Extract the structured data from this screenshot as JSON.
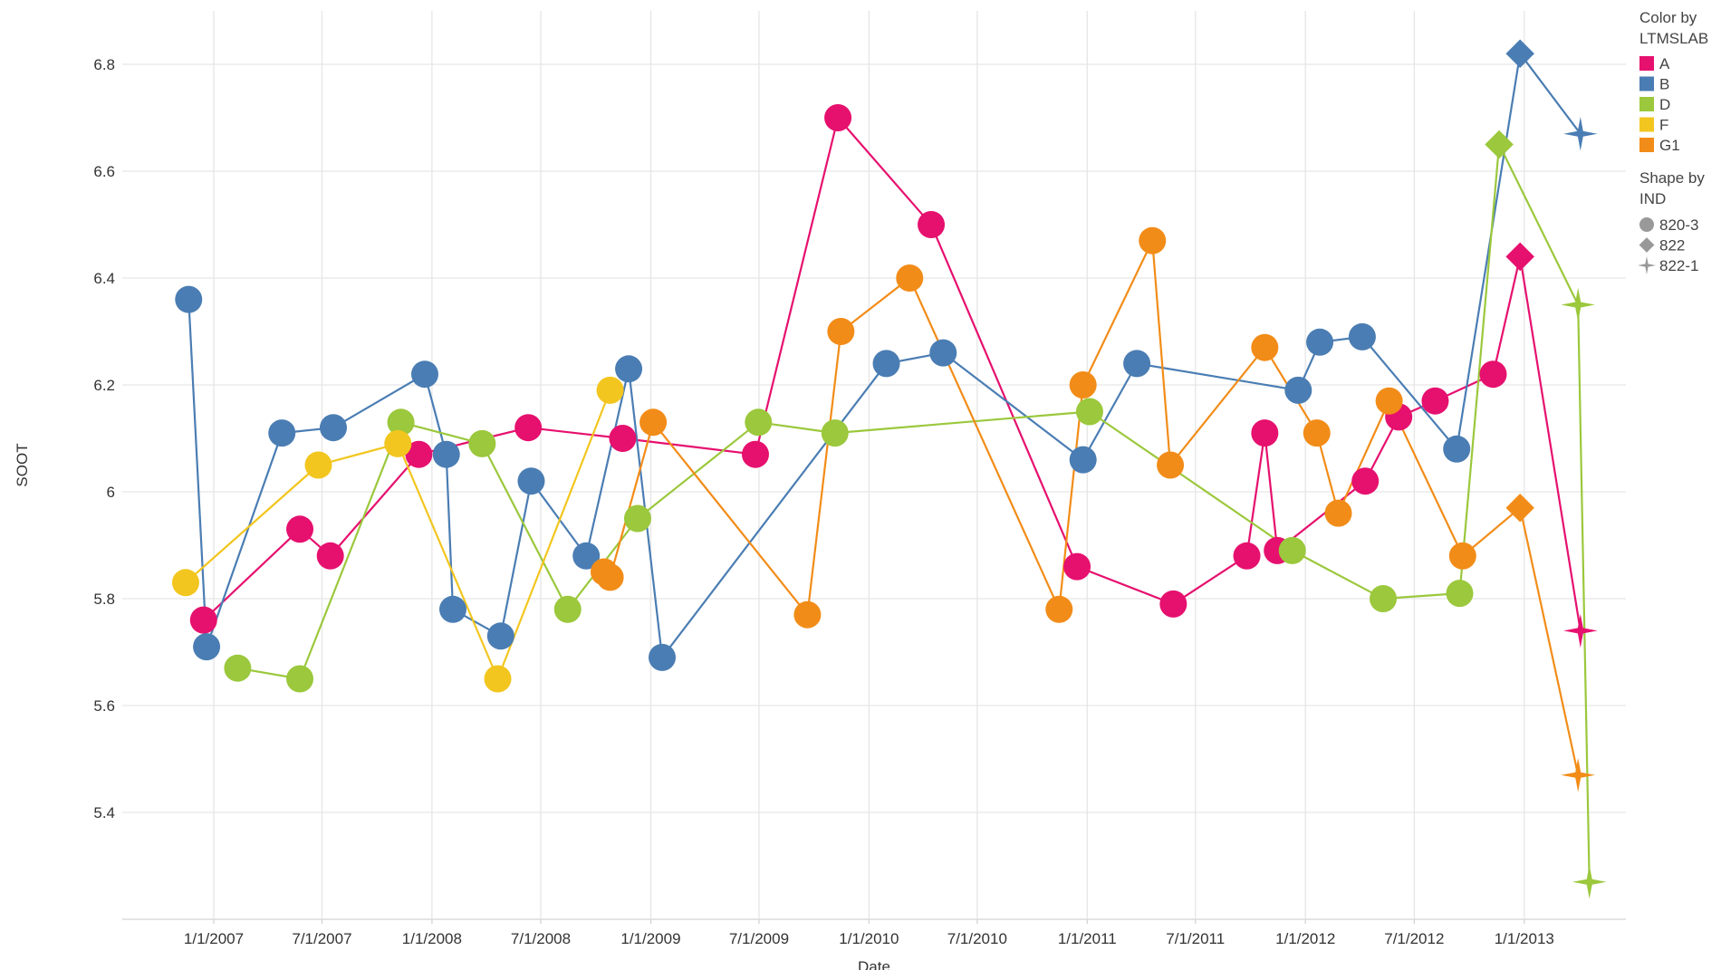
{
  "chart_data": {
    "type": "line",
    "xlabel": "Date",
    "ylabel": "SOOT",
    "x_ticks": [
      "1/1/2007",
      "7/1/2007",
      "1/1/2008",
      "7/1/2008",
      "1/1/2009",
      "7/1/2009",
      "1/1/2010",
      "7/1/2010",
      "1/1/2011",
      "7/1/2011",
      "1/1/2012",
      "7/1/2012",
      "1/1/2013"
    ],
    "y_ticks": [
      "5.4",
      "5.6",
      "5.8",
      "6",
      "6.2",
      "6.4",
      "6.6",
      "6.8"
    ],
    "xlim": [
      "2006-08-01",
      "2013-06-20"
    ],
    "ylim": [
      5.2,
      6.9
    ],
    "grid": true,
    "legend_position": "right",
    "legend": {
      "color_title_1": "Color by",
      "color_title_2": "LTMSLAB",
      "shape_title_1": "Shape by",
      "shape_title_2": "IND",
      "shapes": [
        {
          "name": "820-3",
          "shape": "circle"
        },
        {
          "name": "822",
          "shape": "diamond"
        },
        {
          "name": "822-1",
          "shape": "star"
        }
      ]
    },
    "series": [
      {
        "name": "A",
        "color": "#e6106e",
        "points": [
          {
            "x": "2006-12-15",
            "y": 5.76,
            "shape": "circle"
          },
          {
            "x": "2007-05-25",
            "y": 5.93,
            "shape": "circle"
          },
          {
            "x": "2007-07-15",
            "y": 5.88,
            "shape": "circle"
          },
          {
            "x": "2007-12-10",
            "y": 6.07,
            "shape": "circle"
          },
          {
            "x": "2008-06-10",
            "y": 6.12,
            "shape": "circle"
          },
          {
            "x": "2008-11-15",
            "y": 6.1,
            "shape": "circle"
          },
          {
            "x": "2009-06-25",
            "y": 6.07,
            "shape": "circle"
          },
          {
            "x": "2009-11-10",
            "y": 6.7,
            "shape": "circle"
          },
          {
            "x": "2010-04-15",
            "y": 6.5,
            "shape": "circle"
          },
          {
            "x": "2010-12-15",
            "y": 5.86,
            "shape": "circle"
          },
          {
            "x": "2011-05-25",
            "y": 5.79,
            "shape": "circle"
          },
          {
            "x": "2011-09-25",
            "y": 5.88,
            "shape": "circle"
          },
          {
            "x": "2011-10-25",
            "y": 6.11,
            "shape": "circle"
          },
          {
            "x": "2011-11-15",
            "y": 5.89,
            "shape": "circle"
          },
          {
            "x": "2012-04-10",
            "y": 6.02,
            "shape": "circle"
          },
          {
            "x": "2012-06-05",
            "y": 6.14,
            "shape": "circle"
          },
          {
            "x": "2012-08-05",
            "y": 6.17,
            "shape": "circle"
          },
          {
            "x": "2012-11-10",
            "y": 6.22,
            "shape": "circle"
          },
          {
            "x": "2012-12-25",
            "y": 6.44,
            "shape": "diamond"
          },
          {
            "x": "2013-04-05",
            "y": 5.74,
            "shape": "star"
          }
        ]
      },
      {
        "name": "B",
        "color": "#4a7db3",
        "points": [
          {
            "x": "2006-11-20",
            "y": 6.36,
            "shape": "circle"
          },
          {
            "x": "2006-12-20",
            "y": 5.71,
            "shape": "circle"
          },
          {
            "x": "2007-04-25",
            "y": 6.11,
            "shape": "circle"
          },
          {
            "x": "2007-07-20",
            "y": 6.12,
            "shape": "circle"
          },
          {
            "x": "2007-12-20",
            "y": 6.22,
            "shape": "circle"
          },
          {
            "x": "2008-01-25",
            "y": 6.07,
            "shape": "circle"
          },
          {
            "x": "2008-02-05",
            "y": 5.78,
            "shape": "circle"
          },
          {
            "x": "2008-04-25",
            "y": 5.73,
            "shape": "circle"
          },
          {
            "x": "2008-06-15",
            "y": 6.02,
            "shape": "circle"
          },
          {
            "x": "2008-09-15",
            "y": 5.88,
            "shape": "circle"
          },
          {
            "x": "2008-11-25",
            "y": 6.23,
            "shape": "circle"
          },
          {
            "x": "2009-01-20",
            "y": 5.69,
            "shape": "circle"
          },
          {
            "x": "2010-01-30",
            "y": 6.24,
            "shape": "circle"
          },
          {
            "x": "2010-05-05",
            "y": 6.26,
            "shape": "circle"
          },
          {
            "x": "2010-12-25",
            "y": 6.06,
            "shape": "circle"
          },
          {
            "x": "2011-03-25",
            "y": 6.24,
            "shape": "circle"
          },
          {
            "x": "2011-12-20",
            "y": 6.19,
            "shape": "circle"
          },
          {
            "x": "2012-01-25",
            "y": 6.28,
            "shape": "circle"
          },
          {
            "x": "2012-04-05",
            "y": 6.29,
            "shape": "circle"
          },
          {
            "x": "2012-09-10",
            "y": 6.08,
            "shape": "circle"
          },
          {
            "x": "2012-12-25",
            "y": 6.82,
            "shape": "diamond"
          },
          {
            "x": "2013-04-05",
            "y": 6.67,
            "shape": "star"
          }
        ]
      },
      {
        "name": "D",
        "color": "#9bc83c",
        "points": [
          {
            "x": "2007-02-10",
            "y": 5.67,
            "shape": "circle"
          },
          {
            "x": "2007-05-25",
            "y": 5.65,
            "shape": "circle"
          },
          {
            "x": "2007-11-10",
            "y": 6.13,
            "shape": "circle"
          },
          {
            "x": "2008-03-25",
            "y": 6.09,
            "shape": "circle"
          },
          {
            "x": "2008-08-15",
            "y": 5.78,
            "shape": "circle"
          },
          {
            "x": "2008-12-10",
            "y": 5.95,
            "shape": "circle"
          },
          {
            "x": "2009-06-30",
            "y": 6.13,
            "shape": "circle"
          },
          {
            "x": "2009-11-05",
            "y": 6.11,
            "shape": "circle"
          },
          {
            "x": "2011-01-05",
            "y": 6.15,
            "shape": "circle"
          },
          {
            "x": "2011-12-10",
            "y": 5.89,
            "shape": "circle"
          },
          {
            "x": "2012-05-10",
            "y": 5.8,
            "shape": "circle"
          },
          {
            "x": "2012-09-15",
            "y": 5.81,
            "shape": "circle"
          },
          {
            "x": "2012-11-20",
            "y": 6.65,
            "shape": "diamond"
          },
          {
            "x": "2013-04-01",
            "y": 6.35,
            "shape": "star"
          },
          {
            "x": "2013-04-20",
            "y": 5.27,
            "shape": "star"
          }
        ]
      },
      {
        "name": "F",
        "color": "#f2c61f",
        "points": [
          {
            "x": "2006-11-15",
            "y": 5.83,
            "shape": "circle"
          },
          {
            "x": "2007-06-25",
            "y": 6.05,
            "shape": "circle"
          },
          {
            "x": "2007-11-05",
            "y": 6.09,
            "shape": "circle"
          },
          {
            "x": "2008-04-20",
            "y": 5.65,
            "shape": "circle"
          },
          {
            "x": "2008-10-25",
            "y": 6.19,
            "shape": "circle"
          }
        ]
      },
      {
        "name": "G1",
        "color": "#f28c18",
        "points": [
          {
            "x": "2008-10-15",
            "y": 5.85,
            "shape": "circle"
          },
          {
            "x": "2008-10-25",
            "y": 5.84,
            "shape": "circle"
          },
          {
            "x": "2009-01-05",
            "y": 6.13,
            "shape": "circle"
          },
          {
            "x": "2009-09-20",
            "y": 5.77,
            "shape": "circle"
          },
          {
            "x": "2009-11-15",
            "y": 6.3,
            "shape": "circle"
          },
          {
            "x": "2010-03-10",
            "y": 6.4,
            "shape": "circle"
          },
          {
            "x": "2010-11-15",
            "y": 5.78,
            "shape": "circle"
          },
          {
            "x": "2010-12-25",
            "y": 6.2,
            "shape": "circle"
          },
          {
            "x": "2011-04-20",
            "y": 6.47,
            "shape": "circle"
          },
          {
            "x": "2011-05-20",
            "y": 6.05,
            "shape": "circle"
          },
          {
            "x": "2011-10-25",
            "y": 6.27,
            "shape": "circle"
          },
          {
            "x": "2012-01-20",
            "y": 6.11,
            "shape": "circle"
          },
          {
            "x": "2012-02-25",
            "y": 5.96,
            "shape": "circle"
          },
          {
            "x": "2012-05-20",
            "y": 6.17,
            "shape": "circle"
          },
          {
            "x": "2012-09-20",
            "y": 5.88,
            "shape": "circle"
          },
          {
            "x": "2012-12-25",
            "y": 5.97,
            "shape": "diamond"
          },
          {
            "x": "2013-04-01",
            "y": 5.47,
            "shape": "star"
          }
        ]
      }
    ]
  }
}
